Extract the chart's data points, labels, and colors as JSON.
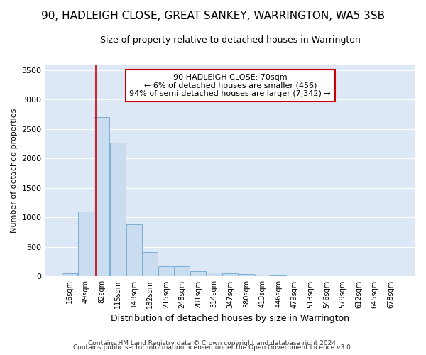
{
  "title": "90, HADLEIGH CLOSE, GREAT SANKEY, WARRINGTON, WA5 3SB",
  "subtitle": "Size of property relative to detached houses in Warrington",
  "xlabel": "Distribution of detached houses by size in Warrington",
  "ylabel": "Number of detached properties",
  "bar_color": "#c9dcf0",
  "bar_edge_color": "#7bafd4",
  "plot_bg_color": "#dce8f5",
  "fig_bg_color": "#ffffff",
  "grid_color": "#ffffff",
  "annotation_text": "90 HADLEIGH CLOSE: 70sqm\n← 6% of detached houses are smaller (456)\n94% of semi-detached houses are larger (7,342) →",
  "annotation_box_facecolor": "#ffffff",
  "annotation_box_edgecolor": "#cc0000",
  "vline_color": "#cc0000",
  "vline_x_index": 1.636,
  "categories": [
    "16sqm",
    "49sqm",
    "82sqm",
    "115sqm",
    "148sqm",
    "182sqm",
    "215sqm",
    "248sqm",
    "281sqm",
    "314sqm",
    "347sqm",
    "380sqm",
    "413sqm",
    "446sqm",
    "479sqm",
    "513sqm",
    "546sqm",
    "579sqm",
    "612sqm",
    "645sqm",
    "678sqm"
  ],
  "values": [
    50,
    1100,
    2700,
    2270,
    880,
    420,
    175,
    175,
    95,
    65,
    50,
    40,
    30,
    20,
    8,
    5,
    3,
    2,
    1,
    1,
    1
  ],
  "ylim": [
    0,
    3600
  ],
  "yticks": [
    0,
    500,
    1000,
    1500,
    2000,
    2500,
    3000,
    3500
  ],
  "title_fontsize": 11,
  "subtitle_fontsize": 9,
  "ylabel_fontsize": 8,
  "xlabel_fontsize": 9,
  "tick_fontsize": 8,
  "footer1": "Contains HM Land Registry data © Crown copyright and database right 2024.",
  "footer2": "Contains public sector information licensed under the Open Government Licence v3.0."
}
